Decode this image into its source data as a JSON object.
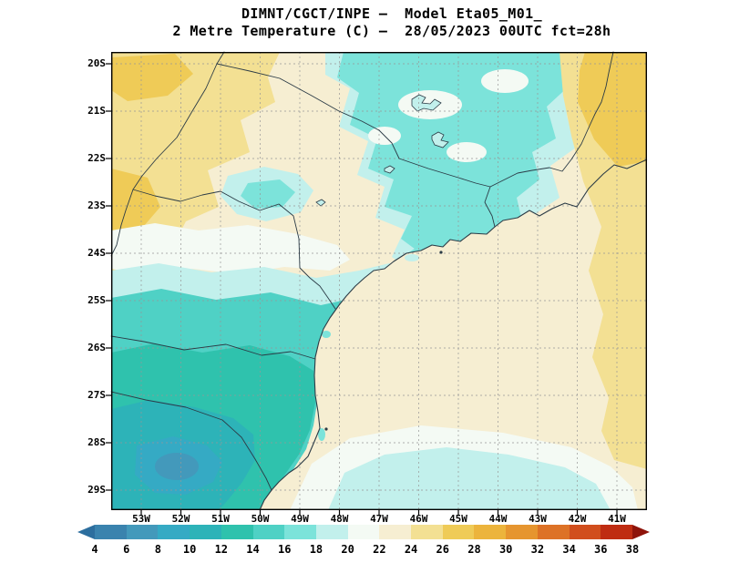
{
  "title": {
    "line1": "DIMNT/CGCT/INPE –  Model Eta05_M01_",
    "line2": "2 Metre Temperature (C) –  28/05/2023 00UTC fct=28h"
  },
  "axes": {
    "lat_labels": [
      "20S",
      "21S",
      "22S",
      "23S",
      "24S",
      "25S",
      "26S",
      "27S",
      "28S",
      "29S"
    ],
    "lon_labels": [
      "53W",
      "52W",
      "51W",
      "50W",
      "49W",
      "48W",
      "47W",
      "46W",
      "45W",
      "44W",
      "43W",
      "42W",
      "41W"
    ]
  },
  "colorbar": {
    "tick_labels": [
      "4",
      "6",
      "8",
      "10",
      "12",
      "14",
      "16",
      "18",
      "20",
      "22",
      "24",
      "26",
      "28",
      "30",
      "32",
      "34",
      "36",
      "38"
    ],
    "colors": [
      "#2c6e9e",
      "#3a83ae",
      "#4399bb",
      "#35aac4",
      "#2db3b8",
      "#2fc2ad",
      "#4fd1c5",
      "#7ce3da",
      "#c2f0ec",
      "#f4faf4",
      "#f6eed2",
      "#f3e093",
      "#efcb57",
      "#ecb43c",
      "#e6952f",
      "#dd7226",
      "#d14e1d",
      "#bf2c12",
      "#8e130a"
    ]
  },
  "chart_data": {
    "type": "heatmap",
    "title": "2 Metre Temperature (C)",
    "model": "Eta05_M01_",
    "valid": "28/05/2023 00UTC fct=28h",
    "levels": [
      4,
      6,
      8,
      10,
      12,
      14,
      16,
      18,
      20,
      22,
      24,
      26,
      28,
      30,
      32,
      34,
      36,
      38
    ],
    "units": "C",
    "lat_range": [
      "20S",
      "29S"
    ],
    "lon_range": [
      "53W",
      "41W"
    ]
  }
}
